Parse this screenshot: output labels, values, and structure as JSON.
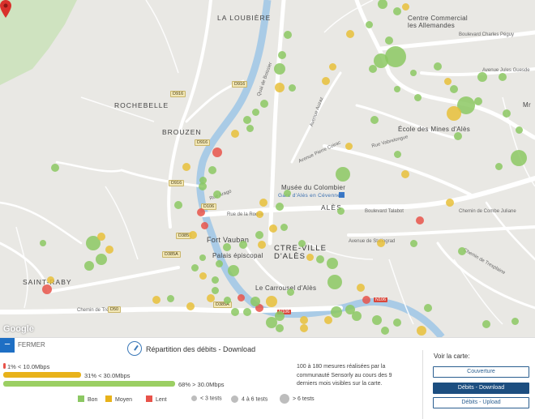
{
  "map": {
    "place_labels": {
      "la_loubiere": "LA LOUBIÈRE",
      "rochebelle": "ROCHEBELLE",
      "brouzen": "BROUZEN",
      "saint_raby": "SAINT-RABY",
      "centre_ville": "CTRE-VILLE\nD'ALÈS",
      "ales": "ALÈS"
    },
    "poi_labels": {
      "centre_commercial": "Centre Commercial\nles Allemandes",
      "ecole_mines": "École des Mines d'Alès",
      "musee": "Musée du Colombier",
      "gare": "Gare d'Alès en Cévennes",
      "fort_vauban": "Fort Vauban",
      "palais": "Palais épiscopal",
      "carrousel": "Le Carrousel d'Alès",
      "mr": "Mr"
    },
    "road_labels": {
      "bd_charles_peguy": "Boulevard Charles Péguy",
      "av_jules_guesde": "Avenue Jules Guesde",
      "bd_talabot": "Boulevard Talabot",
      "rue_arago": "Rue Arago",
      "rue_vabrelongue": "Rue Vabrelongue",
      "av_pierre_coirac": "Avenue Pierre Coirac",
      "av_stalingrad": "Avenue de Stalingrad",
      "ch_combe_juliane": "Chemin de Combe Juliane",
      "ch_tresplaine": "Chemin de Tresplaine",
      "rue_roque": "Rue de la Roque",
      "av_auzaz": "Avenue Auzaz",
      "ch_trepalou": "Chemin de Trépalou",
      "quai_boissier": "Quai de Boissier"
    },
    "shields": [
      "D916",
      "D916",
      "D916",
      "D916",
      "D106",
      "D385",
      "D385A",
      "D50",
      "D385A"
    ],
    "shield_red": [
      "N106",
      "N106"
    ],
    "google_mark": "Google"
  },
  "panel": {
    "close_icon": "minus-icon",
    "close_label": "FERMER",
    "title": "Répartition des débits - Download",
    "title_icon": "speedometer-icon",
    "bars": [
      {
        "label": "1% < 10.0Mbps",
        "percent": 1,
        "color": "#e8534a"
      },
      {
        "label": "31% < 30.0Mbps",
        "percent": 31,
        "color": "#e8b21a"
      },
      {
        "label": "68% > 30.0Mbps",
        "percent": 68,
        "color": "#9bcf63"
      }
    ],
    "legend": {
      "bon": "Bon",
      "moyen": "Moyen",
      "lent": "Lent",
      "t1": "< 3 tests",
      "t2": "4 à 6 tests",
      "t3": "> 6 tests",
      "colors": {
        "bon": "#8cc863",
        "moyen": "#e8b21a",
        "lent": "#e8534a"
      }
    },
    "info": "100 à 180 mesures réalisées par la communauté Sensorly au cours des 9 derniers mois visibles sur la carte.",
    "voir": {
      "title": "Voir la carte:",
      "couverture": "Couverture",
      "download": "Débits - Download",
      "upload": "Débits - Upload"
    }
  }
}
